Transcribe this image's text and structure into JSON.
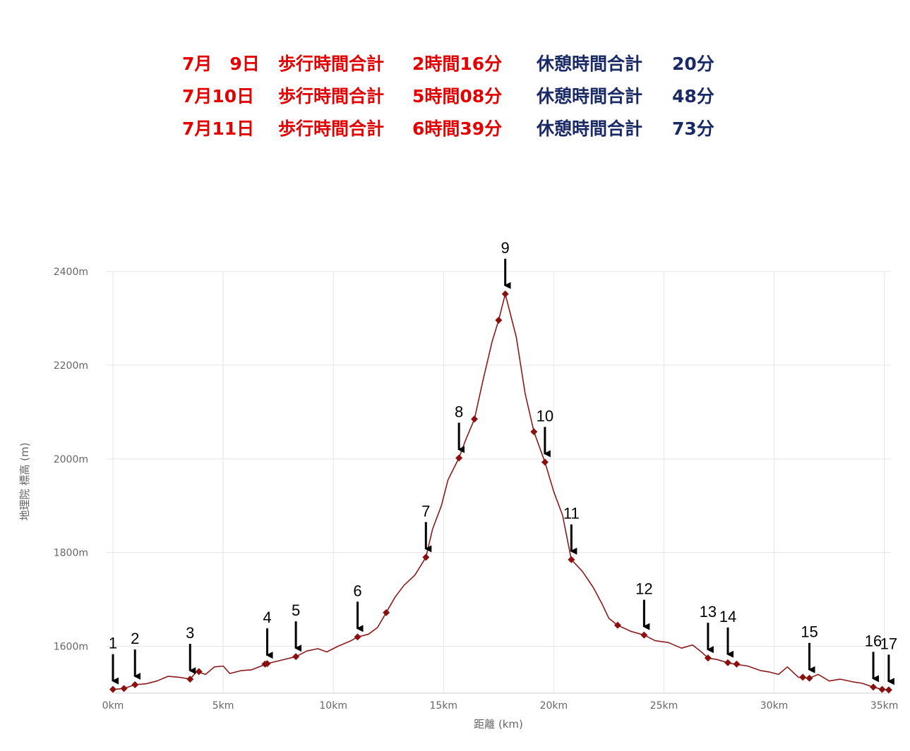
{
  "summary": {
    "red_color": "#e30000",
    "navy_color": "#1a2a66",
    "rows": [
      {
        "date": "7月　9日",
        "walk_label": "歩行時間合計",
        "walk_value": "2時間16分",
        "rest_label": "休憩時間合計",
        "rest_value": "20分"
      },
      {
        "date": "7月10日",
        "walk_label": "歩行時間合計",
        "walk_value": "5時間08分",
        "rest_label": "休憩時間合計",
        "rest_value": "48分"
      },
      {
        "date": "7月11日",
        "walk_label": "歩行時間合計",
        "walk_value": "6時間39分",
        "rest_label": "休憩時間合計",
        "rest_value": "73分"
      }
    ]
  },
  "chart_data": {
    "type": "line",
    "xlabel": "距離 (km)",
    "ylabel": "地理院 標高 (m)",
    "xlim": [
      0,
      35.3
    ],
    "ylim": [
      1500,
      2400
    ],
    "x_ticks": [
      0,
      5,
      10,
      15,
      20,
      25,
      30,
      35
    ],
    "x_tick_labels": [
      "0km",
      "5km",
      "10km",
      "15km",
      "20km",
      "25km",
      "30km",
      "35km"
    ],
    "y_ticks": [
      1600,
      1800,
      2000,
      2200,
      2400
    ],
    "y_tick_labels": [
      "1600m",
      "1800m",
      "2000m",
      "2200m",
      "2400m"
    ],
    "grid": true,
    "line_color": "#8b1a1a",
    "marker_color": "#8b0f0f",
    "series": [
      {
        "values": [
          [
            0,
            1508
          ],
          [
            0.5,
            1510
          ],
          [
            1.0,
            1518
          ],
          [
            1.5,
            1520
          ],
          [
            2.0,
            1526
          ],
          [
            2.5,
            1536
          ],
          [
            3.0,
            1534
          ],
          [
            3.5,
            1530
          ],
          [
            3.8,
            1546
          ],
          [
            4.2,
            1540
          ],
          [
            4.6,
            1556
          ],
          [
            5.0,
            1558
          ],
          [
            5.3,
            1542
          ],
          [
            5.8,
            1548
          ],
          [
            6.3,
            1550
          ],
          [
            7.0,
            1563
          ],
          [
            7.6,
            1570
          ],
          [
            8.3,
            1578
          ],
          [
            8.8,
            1590
          ],
          [
            9.3,
            1595
          ],
          [
            9.7,
            1588
          ],
          [
            10.2,
            1600
          ],
          [
            10.8,
            1612
          ],
          [
            11.1,
            1620
          ],
          [
            11.6,
            1626
          ],
          [
            12.0,
            1640
          ],
          [
            12.4,
            1672
          ],
          [
            12.8,
            1705
          ],
          [
            13.2,
            1730
          ],
          [
            13.7,
            1752
          ],
          [
            14.2,
            1790
          ],
          [
            14.5,
            1850
          ],
          [
            14.9,
            1900
          ],
          [
            15.2,
            1955
          ],
          [
            15.7,
            2002
          ],
          [
            16.0,
            2040
          ],
          [
            16.4,
            2085
          ],
          [
            16.8,
            2170
          ],
          [
            17.2,
            2250
          ],
          [
            17.5,
            2296
          ],
          [
            17.8,
            2352
          ],
          [
            18.3,
            2260
          ],
          [
            18.7,
            2140
          ],
          [
            19.1,
            2058
          ],
          [
            19.6,
            1993
          ],
          [
            20.0,
            1930
          ],
          [
            20.4,
            1880
          ],
          [
            20.8,
            1785
          ],
          [
            21.3,
            1760
          ],
          [
            21.8,
            1725
          ],
          [
            22.2,
            1690
          ],
          [
            22.5,
            1660
          ],
          [
            22.9,
            1645
          ],
          [
            23.5,
            1632
          ],
          [
            24.1,
            1624
          ],
          [
            24.6,
            1612
          ],
          [
            25.2,
            1608
          ],
          [
            25.8,
            1596
          ],
          [
            26.3,
            1603
          ],
          [
            26.7,
            1588
          ],
          [
            27.0,
            1575
          ],
          [
            27.4,
            1572
          ],
          [
            27.9,
            1565
          ],
          [
            28.2,
            1562
          ],
          [
            28.8,
            1558
          ],
          [
            29.4,
            1548
          ],
          [
            29.8,
            1545
          ],
          [
            30.2,
            1540
          ],
          [
            30.6,
            1556
          ],
          [
            31.1,
            1534
          ],
          [
            31.6,
            1532
          ],
          [
            32.0,
            1540
          ],
          [
            32.5,
            1526
          ],
          [
            33.0,
            1530
          ],
          [
            33.6,
            1524
          ],
          [
            34.0,
            1521
          ],
          [
            34.5,
            1513
          ],
          [
            34.9,
            1508
          ],
          [
            35.2,
            1507
          ]
        ]
      }
    ],
    "markers": [
      [
        0,
        1508
      ],
      [
        0.5,
        1510
      ],
      [
        1.0,
        1518
      ],
      [
        3.5,
        1530
      ],
      [
        3.9,
        1546
      ],
      [
        6.9,
        1562
      ],
      [
        7.0,
        1563
      ],
      [
        8.3,
        1578
      ],
      [
        11.1,
        1620
      ],
      [
        12.4,
        1672
      ],
      [
        14.2,
        1790
      ],
      [
        15.7,
        2002
      ],
      [
        16.4,
        2085
      ],
      [
        17.5,
        2296
      ],
      [
        17.8,
        2352
      ],
      [
        19.1,
        2058
      ],
      [
        19.6,
        1993
      ],
      [
        20.8,
        1785
      ],
      [
        22.9,
        1645
      ],
      [
        24.1,
        1624
      ],
      [
        27.0,
        1575
      ],
      [
        27.9,
        1565
      ],
      [
        28.3,
        1562
      ],
      [
        31.3,
        1534
      ],
      [
        31.6,
        1532
      ],
      [
        34.5,
        1513
      ],
      [
        34.9,
        1508
      ],
      [
        35.2,
        1507
      ]
    ],
    "annotations": [
      {
        "label": "1",
        "x": 0,
        "y": 1508
      },
      {
        "label": "2",
        "x": 1.0,
        "y": 1518
      },
      {
        "label": "3",
        "x": 3.5,
        "y": 1530
      },
      {
        "label": "4",
        "x": 7.0,
        "y": 1563
      },
      {
        "label": "5",
        "x": 8.3,
        "y": 1578
      },
      {
        "label": "6",
        "x": 11.1,
        "y": 1620
      },
      {
        "label": "7",
        "x": 14.2,
        "y": 1790
      },
      {
        "label": "8",
        "x": 15.7,
        "y": 2002
      },
      {
        "label": "9",
        "x": 17.8,
        "y": 2352
      },
      {
        "label": "10",
        "x": 19.6,
        "y": 1993
      },
      {
        "label": "11",
        "x": 20.8,
        "y": 1785
      },
      {
        "label": "12",
        "x": 24.1,
        "y": 1624
      },
      {
        "label": "13",
        "x": 27.0,
        "y": 1575
      },
      {
        "label": "14",
        "x": 27.9,
        "y": 1565
      },
      {
        "label": "15",
        "x": 31.6,
        "y": 1532
      },
      {
        "label": "16",
        "x": 34.5,
        "y": 1513
      },
      {
        "label": "17",
        "x": 35.2,
        "y": 1507
      }
    ]
  }
}
